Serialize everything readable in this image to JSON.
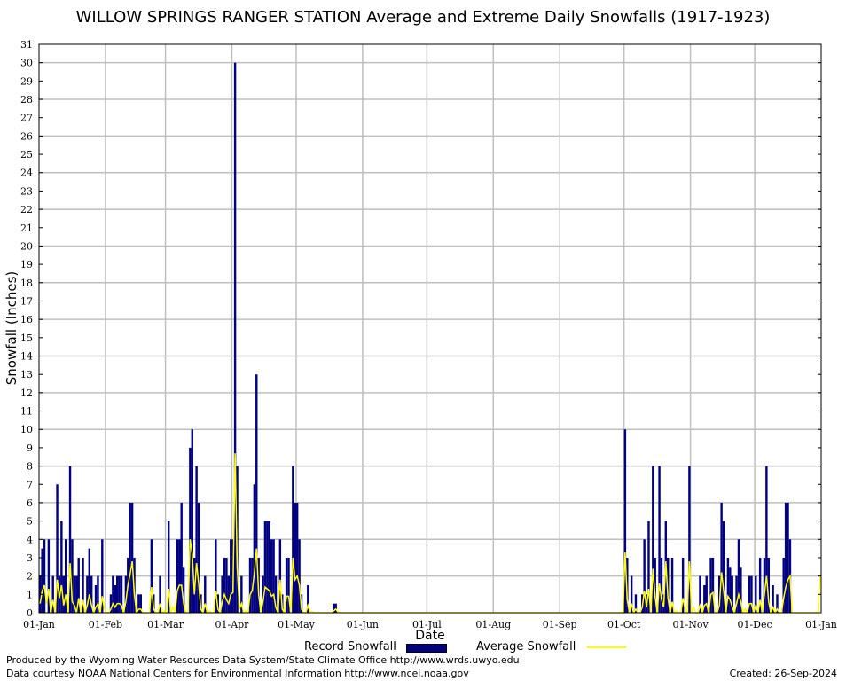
{
  "chart_data": {
    "type": "bar",
    "title": "WILLOW SPRINGS RANGER STATION Average and Extreme Daily Snowfalls (1917-1923)",
    "xlabel": "Date",
    "ylabel": "Snowfall (Inches)",
    "ylim": [
      0,
      31
    ],
    "yticks": [
      "0",
      "1",
      "2",
      "3",
      "4",
      "5",
      "6",
      "7",
      "8",
      "9",
      "10",
      "11",
      "12",
      "13",
      "14",
      "15",
      "16",
      "17",
      "18",
      "19",
      "20",
      "21",
      "22",
      "23",
      "24",
      "25",
      "26",
      "27",
      "28",
      "29",
      "30",
      "31"
    ],
    "xticks": [
      "01-Jan",
      "01-Feb",
      "01-Mar",
      "01-Apr",
      "01-May",
      "01-Jun",
      "01-Jul",
      "01-Aug",
      "01-Sep",
      "01-Oct",
      "01-Nov",
      "01-Dec",
      "01-Jan"
    ],
    "grid": true,
    "series": [
      {
        "name": "Record Snowfall",
        "color": "#000080",
        "type": "bar",
        "points": [
          [
            "01-Jan",
            2
          ],
          [
            "02-Jan",
            3.5
          ],
          [
            "03-Jan",
            4
          ],
          [
            "05-Jan",
            4
          ],
          [
            "07-Jan",
            2
          ],
          [
            "09-Jan",
            7
          ],
          [
            "10-Jan",
            2
          ],
          [
            "11-Jan",
            5
          ],
          [
            "12-Jan",
            2
          ],
          [
            "13-Jan",
            4
          ],
          [
            "15-Jan",
            8
          ],
          [
            "16-Jan",
            4
          ],
          [
            "17-Jan",
            2
          ],
          [
            "18-Jan",
            2
          ],
          [
            "19-Jan",
            3
          ],
          [
            "21-Jan",
            3
          ],
          [
            "23-Jan",
            2
          ],
          [
            "24-Jan",
            3.5
          ],
          [
            "25-Jan",
            2
          ],
          [
            "27-Jan",
            1.5
          ],
          [
            "28-Jan",
            2
          ],
          [
            "30-Jan",
            4
          ],
          [
            "03-Feb",
            1
          ],
          [
            "04-Feb",
            2
          ],
          [
            "05-Feb",
            1.5
          ],
          [
            "06-Feb",
            2
          ],
          [
            "07-Feb",
            2
          ],
          [
            "08-Feb",
            2
          ],
          [
            "10-Feb",
            2
          ],
          [
            "11-Feb",
            3
          ],
          [
            "12-Feb",
            6
          ],
          [
            "13-Feb",
            6
          ],
          [
            "14-Feb",
            3
          ],
          [
            "16-Feb",
            1
          ],
          [
            "17-Feb",
            1
          ],
          [
            "22-Feb",
            4
          ],
          [
            "23-Feb",
            1
          ],
          [
            "26-Feb",
            2
          ],
          [
            "02-Mar",
            5
          ],
          [
            "06-Mar",
            4
          ],
          [
            "07-Mar",
            4
          ],
          [
            "08-Mar",
            6
          ],
          [
            "09-Mar",
            2.5
          ],
          [
            "12-Mar",
            9
          ],
          [
            "13-Mar",
            10
          ],
          [
            "14-Mar",
            3
          ],
          [
            "15-Mar",
            8
          ],
          [
            "16-Mar",
            6
          ],
          [
            "17-Mar",
            1
          ],
          [
            "19-Mar",
            2
          ],
          [
            "24-Mar",
            4
          ],
          [
            "25-Mar",
            1
          ],
          [
            "27-Mar",
            2
          ],
          [
            "28-Mar",
            3
          ],
          [
            "29-Mar",
            3
          ],
          [
            "30-Mar",
            2
          ],
          [
            "31-Mar",
            4
          ],
          [
            "01-Apr",
            4
          ],
          [
            "02-Apr",
            30
          ],
          [
            "03-Apr",
            8
          ],
          [
            "05-Apr",
            2
          ],
          [
            "09-Apr",
            3
          ],
          [
            "10-Apr",
            3
          ],
          [
            "11-Apr",
            7
          ],
          [
            "12-Apr",
            13
          ],
          [
            "13-Apr",
            3
          ],
          [
            "15-Apr",
            2
          ],
          [
            "16-Apr",
            5
          ],
          [
            "17-Apr",
            5
          ],
          [
            "18-Apr",
            5
          ],
          [
            "19-Apr",
            4
          ],
          [
            "20-Apr",
            4
          ],
          [
            "21-Apr",
            2
          ],
          [
            "23-Apr",
            4
          ],
          [
            "24-Apr",
            1
          ],
          [
            "26-Apr",
            3
          ],
          [
            "27-Apr",
            3
          ],
          [
            "29-Apr",
            8
          ],
          [
            "30-Apr",
            6
          ],
          [
            "01-May",
            6
          ],
          [
            "02-May",
            4
          ],
          [
            "03-May",
            1
          ],
          [
            "06-May",
            1.5
          ],
          [
            "18-May",
            0.5
          ],
          [
            "19-May",
            0.5
          ],
          [
            "01-Oct",
            10
          ],
          [
            "02-Oct",
            3
          ],
          [
            "04-Oct",
            2
          ],
          [
            "06-Oct",
            1
          ],
          [
            "09-Oct",
            1
          ],
          [
            "10-Oct",
            4
          ],
          [
            "11-Oct",
            1
          ],
          [
            "12-Oct",
            5
          ],
          [
            "14-Oct",
            8
          ],
          [
            "15-Oct",
            3
          ],
          [
            "17-Oct",
            8
          ],
          [
            "18-Oct",
            3
          ],
          [
            "19-Oct",
            1
          ],
          [
            "20-Oct",
            5
          ],
          [
            "21-Oct",
            3
          ],
          [
            "23-Oct",
            3
          ],
          [
            "28-Oct",
            3
          ],
          [
            "31-Oct",
            8
          ],
          [
            "05-Nov",
            2
          ],
          [
            "07-Nov",
            1.5
          ],
          [
            "08-Nov",
            2
          ],
          [
            "10-Nov",
            3
          ],
          [
            "11-Nov",
            3
          ],
          [
            "14-Nov",
            2
          ],
          [
            "15-Nov",
            6
          ],
          [
            "16-Nov",
            5
          ],
          [
            "18-Nov",
            3
          ],
          [
            "19-Nov",
            2.5
          ],
          [
            "20-Nov",
            2
          ],
          [
            "22-Nov",
            2
          ],
          [
            "23-Nov",
            4
          ],
          [
            "24-Nov",
            2.5
          ],
          [
            "28-Nov",
            2
          ],
          [
            "29-Nov",
            2
          ],
          [
            "01-Dec",
            2
          ],
          [
            "03-Dec",
            3
          ],
          [
            "05-Dec",
            3
          ],
          [
            "06-Dec",
            8
          ],
          [
            "07-Dec",
            3
          ],
          [
            "09-Dec",
            1.5
          ],
          [
            "11-Dec",
            1
          ],
          [
            "14-Dec",
            3
          ],
          [
            "15-Dec",
            6
          ],
          [
            "16-Dec",
            6
          ],
          [
            "17-Dec",
            4
          ]
        ]
      },
      {
        "name": "Average Snowfall",
        "color": "#ffff00",
        "type": "line",
        "points": [
          [
            "01-Jan",
            0.5
          ],
          [
            "02-Jan",
            1.2
          ],
          [
            "03-Jan",
            1.5
          ],
          [
            "04-Jan",
            0.5
          ],
          [
            "05-Jan",
            1.3
          ],
          [
            "07-Jan",
            0.7
          ],
          [
            "09-Jan",
            1.8
          ],
          [
            "10-Jan",
            0.8
          ],
          [
            "11-Jan",
            1.5
          ],
          [
            "12-Jan",
            0.4
          ],
          [
            "13-Jan",
            1
          ],
          [
            "15-Jan",
            2.7
          ],
          [
            "16-Jan",
            0.6
          ],
          [
            "17-Jan",
            0.4
          ],
          [
            "19-Jan",
            0.8
          ],
          [
            "21-Jan",
            0.7
          ],
          [
            "23-Jan",
            0.4
          ],
          [
            "24-Jan",
            1
          ],
          [
            "25-Jan",
            0.4
          ],
          [
            "27-Jan",
            0.3
          ],
          [
            "28-Jan",
            0.5
          ],
          [
            "30-Jan",
            0.9
          ],
          [
            "31-Jan",
            0.2
          ],
          [
            "03-Feb",
            0.2
          ],
          [
            "04-Feb",
            0.5
          ],
          [
            "05-Feb",
            0.3
          ],
          [
            "06-Feb",
            0.5
          ],
          [
            "07-Feb",
            0.5
          ],
          [
            "08-Feb",
            0.4
          ],
          [
            "10-Feb",
            0.6
          ],
          [
            "11-Feb",
            1.5
          ],
          [
            "12-Feb",
            2.1
          ],
          [
            "13-Feb",
            2.8
          ],
          [
            "14-Feb",
            1
          ],
          [
            "16-Feb",
            0.2
          ],
          [
            "17-Feb",
            0.2
          ],
          [
            "22-Feb",
            1.4
          ],
          [
            "23-Feb",
            0.2
          ],
          [
            "26-Feb",
            0.5
          ],
          [
            "28-Feb",
            0.1
          ],
          [
            "02-Mar",
            1.3
          ],
          [
            "04-Mar",
            0.3
          ],
          [
            "06-Mar",
            1.2
          ],
          [
            "07-Mar",
            1.5
          ],
          [
            "08-Mar",
            1.5
          ],
          [
            "09-Mar",
            0.5
          ],
          [
            "12-Mar",
            4
          ],
          [
            "13-Mar",
            3.2
          ],
          [
            "14-Mar",
            1
          ],
          [
            "15-Mar",
            2.7
          ],
          [
            "16-Mar",
            1.6
          ],
          [
            "17-Mar",
            0.2
          ],
          [
            "19-Mar",
            0.5
          ],
          [
            "21-Mar",
            0.1
          ],
          [
            "24-Mar",
            1.2
          ],
          [
            "25-Mar",
            0.2
          ],
          [
            "27-Mar",
            0.6
          ],
          [
            "28-Mar",
            1
          ],
          [
            "29-Mar",
            0.7
          ],
          [
            "30-Mar",
            0.5
          ],
          [
            "31-Mar",
            1
          ],
          [
            "01-Apr",
            1.1
          ],
          [
            "02-Apr",
            8.7
          ],
          [
            "03-Apr",
            2.5
          ],
          [
            "04-Apr",
            0.2
          ],
          [
            "05-Apr",
            0.5
          ],
          [
            "07-Apr",
            0.1
          ],
          [
            "09-Apr",
            1
          ],
          [
            "10-Apr",
            1.2
          ],
          [
            "11-Apr",
            2.2
          ],
          [
            "12-Apr",
            3.5
          ],
          [
            "13-Apr",
            1
          ],
          [
            "15-Apr",
            0.6
          ],
          [
            "16-Apr",
            1.4
          ],
          [
            "17-Apr",
            1.3
          ],
          [
            "18-Apr",
            1.2
          ],
          [
            "19-Apr",
            0.9
          ],
          [
            "20-Apr",
            1
          ],
          [
            "21-Apr",
            0.3
          ],
          [
            "23-Apr",
            1.8
          ],
          [
            "24-Apr",
            0.2
          ],
          [
            "26-Apr",
            0.9
          ],
          [
            "27-Apr",
            0.9
          ],
          [
            "29-Apr",
            3
          ],
          [
            "30-Apr",
            1.8
          ],
          [
            "01-May",
            2
          ],
          [
            "02-May",
            1.5
          ],
          [
            "03-May",
            0.2
          ],
          [
            "06-May",
            0.4
          ],
          [
            "08-May",
            0.05
          ],
          [
            "18-May",
            0.1
          ],
          [
            "19-May",
            0.2
          ],
          [
            "20-May",
            0.05
          ],
          [
            "30-Sep",
            0.05
          ],
          [
            "01-Oct",
            3.3
          ],
          [
            "02-Oct",
            0.7
          ],
          [
            "04-Oct",
            0.5
          ],
          [
            "06-Oct",
            0.2
          ],
          [
            "09-Oct",
            0.3
          ],
          [
            "10-Oct",
            1.2
          ],
          [
            "11-Oct",
            0.3
          ],
          [
            "12-Oct",
            1.3
          ],
          [
            "14-Oct",
            2.4
          ],
          [
            "15-Oct",
            0.9
          ],
          [
            "17-Oct",
            1.6
          ],
          [
            "18-Oct",
            0.7
          ],
          [
            "19-Oct",
            0.3
          ],
          [
            "20-Oct",
            2.8
          ],
          [
            "21-Oct",
            0.8
          ],
          [
            "23-Oct",
            0.6
          ],
          [
            "25-Oct",
            0.1
          ],
          [
            "28-Oct",
            0.8
          ],
          [
            "29-Oct",
            0.2
          ],
          [
            "31-Oct",
            2.8
          ],
          [
            "02-Nov",
            0.3
          ],
          [
            "05-Nov",
            0.4
          ],
          [
            "07-Nov",
            0.4
          ],
          [
            "08-Nov",
            0.5
          ],
          [
            "10-Nov",
            1
          ],
          [
            "11-Nov",
            1.1
          ],
          [
            "14-Nov",
            0.4
          ],
          [
            "15-Nov",
            2.2
          ],
          [
            "16-Nov",
            1.2
          ],
          [
            "18-Nov",
            0.9
          ],
          [
            "19-Nov",
            0.7
          ],
          [
            "20-Nov",
            0.3
          ],
          [
            "22-Nov",
            0.5
          ],
          [
            "23-Nov",
            1
          ],
          [
            "24-Nov",
            0.6
          ],
          [
            "26-Nov",
            0.2
          ],
          [
            "28-Nov",
            0.5
          ],
          [
            "29-Nov",
            0.5
          ],
          [
            "01-Dec",
            0.4
          ],
          [
            "03-Dec",
            0.7
          ],
          [
            "05-Dec",
            1
          ],
          [
            "06-Dec",
            2
          ],
          [
            "07-Dec",
            0.6
          ],
          [
            "09-Dec",
            0.3
          ],
          [
            "11-Dec",
            0.2
          ],
          [
            "14-Dec",
            0.8
          ],
          [
            "15-Dec",
            1.4
          ],
          [
            "16-Dec",
            1.8
          ],
          [
            "17-Dec",
            2
          ],
          [
            "31-Dec",
            2
          ]
        ]
      }
    ]
  },
  "legend": {
    "record_label": "Record Snowfall",
    "average_label": "Average Snowfall"
  },
  "footer": {
    "produced_by": "Produced by the Wyoming Water Resources Data System/State Climate Office http://www.wrds.uwyo.edu",
    "data_courtesy": "Data courtesy NOAA National Centers for Environmental Information http://www.ncei.noaa.gov",
    "created": "Created:  26-Sep-2024"
  }
}
